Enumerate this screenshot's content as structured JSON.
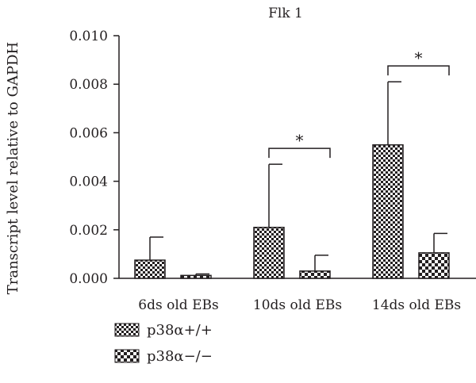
{
  "chart_data": {
    "type": "bar",
    "title": "Flk 1",
    "xlabel": "",
    "ylabel": "Transcript level relative to GAPDH",
    "ylim": [
      0,
      0.01
    ],
    "yticks": [
      "0.000",
      "0.002",
      "0.004",
      "0.006",
      "0.008",
      "0.010"
    ],
    "categories": [
      "6ds old EBs",
      "10ds old EBs",
      "14ds old EBs"
    ],
    "series": [
      {
        "name": "p38α+/+",
        "values": [
          0.00075,
          0.0021,
          0.0055
        ],
        "errors": [
          0.00095,
          0.0026,
          0.0026
        ],
        "pattern": "coarse-check"
      },
      {
        "name": "p38α−/−",
        "values": [
          0.00012,
          0.0003,
          0.00105
        ],
        "errors": [
          6e-05,
          0.00065,
          0.0008
        ],
        "pattern": "fine-check"
      }
    ],
    "significance": [
      {
        "category": "10ds old EBs",
        "label": "*"
      },
      {
        "category": "14ds old EBs",
        "label": "*"
      }
    ],
    "legend_position": "bottom-left",
    "grid": false
  }
}
